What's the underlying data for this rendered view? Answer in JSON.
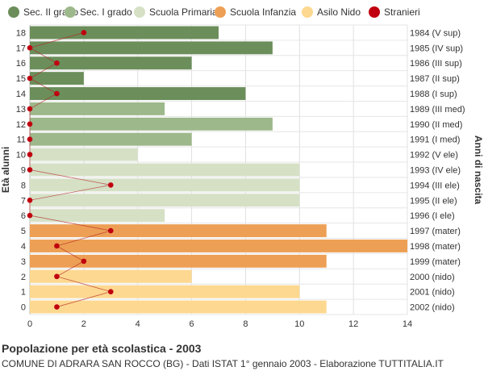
{
  "chart_data": {
    "type": "bar",
    "orientation": "horizontal",
    "title": "Popolazione per età scolastica - 2003",
    "subtitle": "COMUNE DI ADRARA SAN ROCCO (BG) - Dati ISTAT 1° gennaio 2003 - Elaborazione TUTTITALIA.IT",
    "ylabel_left": "Età alunni",
    "ylabel_right": "Anni di nascita",
    "xlim": [
      0,
      14
    ],
    "xticks": [
      0,
      2,
      4,
      6,
      8,
      10,
      12,
      14
    ],
    "grid": true,
    "legend_position": "top",
    "legend": [
      {
        "name": "Sec. II grado",
        "color": "#6b8e5a",
        "marker": "circle"
      },
      {
        "name": "Sec. I grado",
        "color": "#9db88a",
        "marker": "circle"
      },
      {
        "name": "Scuola Primaria",
        "color": "#d5e0c5",
        "marker": "circle"
      },
      {
        "name": "Scuola Infanzia",
        "color": "#eda055",
        "marker": "circle"
      },
      {
        "name": "Asilo Nido",
        "color": "#fdd890",
        "marker": "circle"
      },
      {
        "name": "Stranieri",
        "color": "#c0000f",
        "marker": "circle"
      }
    ],
    "rows": [
      {
        "age": "18",
        "birth": "1984 (V sup)",
        "value": 7,
        "stranieri": 2,
        "group": 0
      },
      {
        "age": "17",
        "birth": "1985 (IV sup)",
        "value": 9,
        "stranieri": 0,
        "group": 0
      },
      {
        "age": "16",
        "birth": "1986 (III sup)",
        "value": 6,
        "stranieri": 1,
        "group": 0
      },
      {
        "age": "15",
        "birth": "1987 (II sup)",
        "value": 2,
        "stranieri": 0,
        "group": 0
      },
      {
        "age": "14",
        "birth": "1988 (I sup)",
        "value": 8,
        "stranieri": 1,
        "group": 0
      },
      {
        "age": "13",
        "birth": "1989 (III med)",
        "value": 5,
        "stranieri": 0,
        "group": 1
      },
      {
        "age": "12",
        "birth": "1990 (II med)",
        "value": 9,
        "stranieri": 0,
        "group": 1
      },
      {
        "age": "11",
        "birth": "1991 (I med)",
        "value": 6,
        "stranieri": 0,
        "group": 1
      },
      {
        "age": "10",
        "birth": "1992 (V ele)",
        "value": 4,
        "stranieri": 0,
        "group": 2
      },
      {
        "age": "9",
        "birth": "1993 (IV ele)",
        "value": 10,
        "stranieri": 0,
        "group": 2
      },
      {
        "age": "8",
        "birth": "1994 (III ele)",
        "value": 10,
        "stranieri": 3,
        "group": 2
      },
      {
        "age": "7",
        "birth": "1995 (II ele)",
        "value": 10,
        "stranieri": 0,
        "group": 2
      },
      {
        "age": "6",
        "birth": "1996 (I ele)",
        "value": 5,
        "stranieri": 0,
        "group": 2
      },
      {
        "age": "5",
        "birth": "1997 (mater)",
        "value": 11,
        "stranieri": 3,
        "group": 3
      },
      {
        "age": "4",
        "birth": "1998 (mater)",
        "value": 14,
        "stranieri": 1,
        "group": 3
      },
      {
        "age": "3",
        "birth": "1999 (mater)",
        "value": 11,
        "stranieri": 2,
        "group": 3
      },
      {
        "age": "2",
        "birth": "2000 (nido)",
        "value": 6,
        "stranieri": 1,
        "group": 4
      },
      {
        "age": "1",
        "birth": "2001 (nido)",
        "value": 10,
        "stranieri": 3,
        "group": 4
      },
      {
        "age": "0",
        "birth": "2002 (nido)",
        "value": 11,
        "stranieri": 1,
        "group": 4
      }
    ]
  }
}
